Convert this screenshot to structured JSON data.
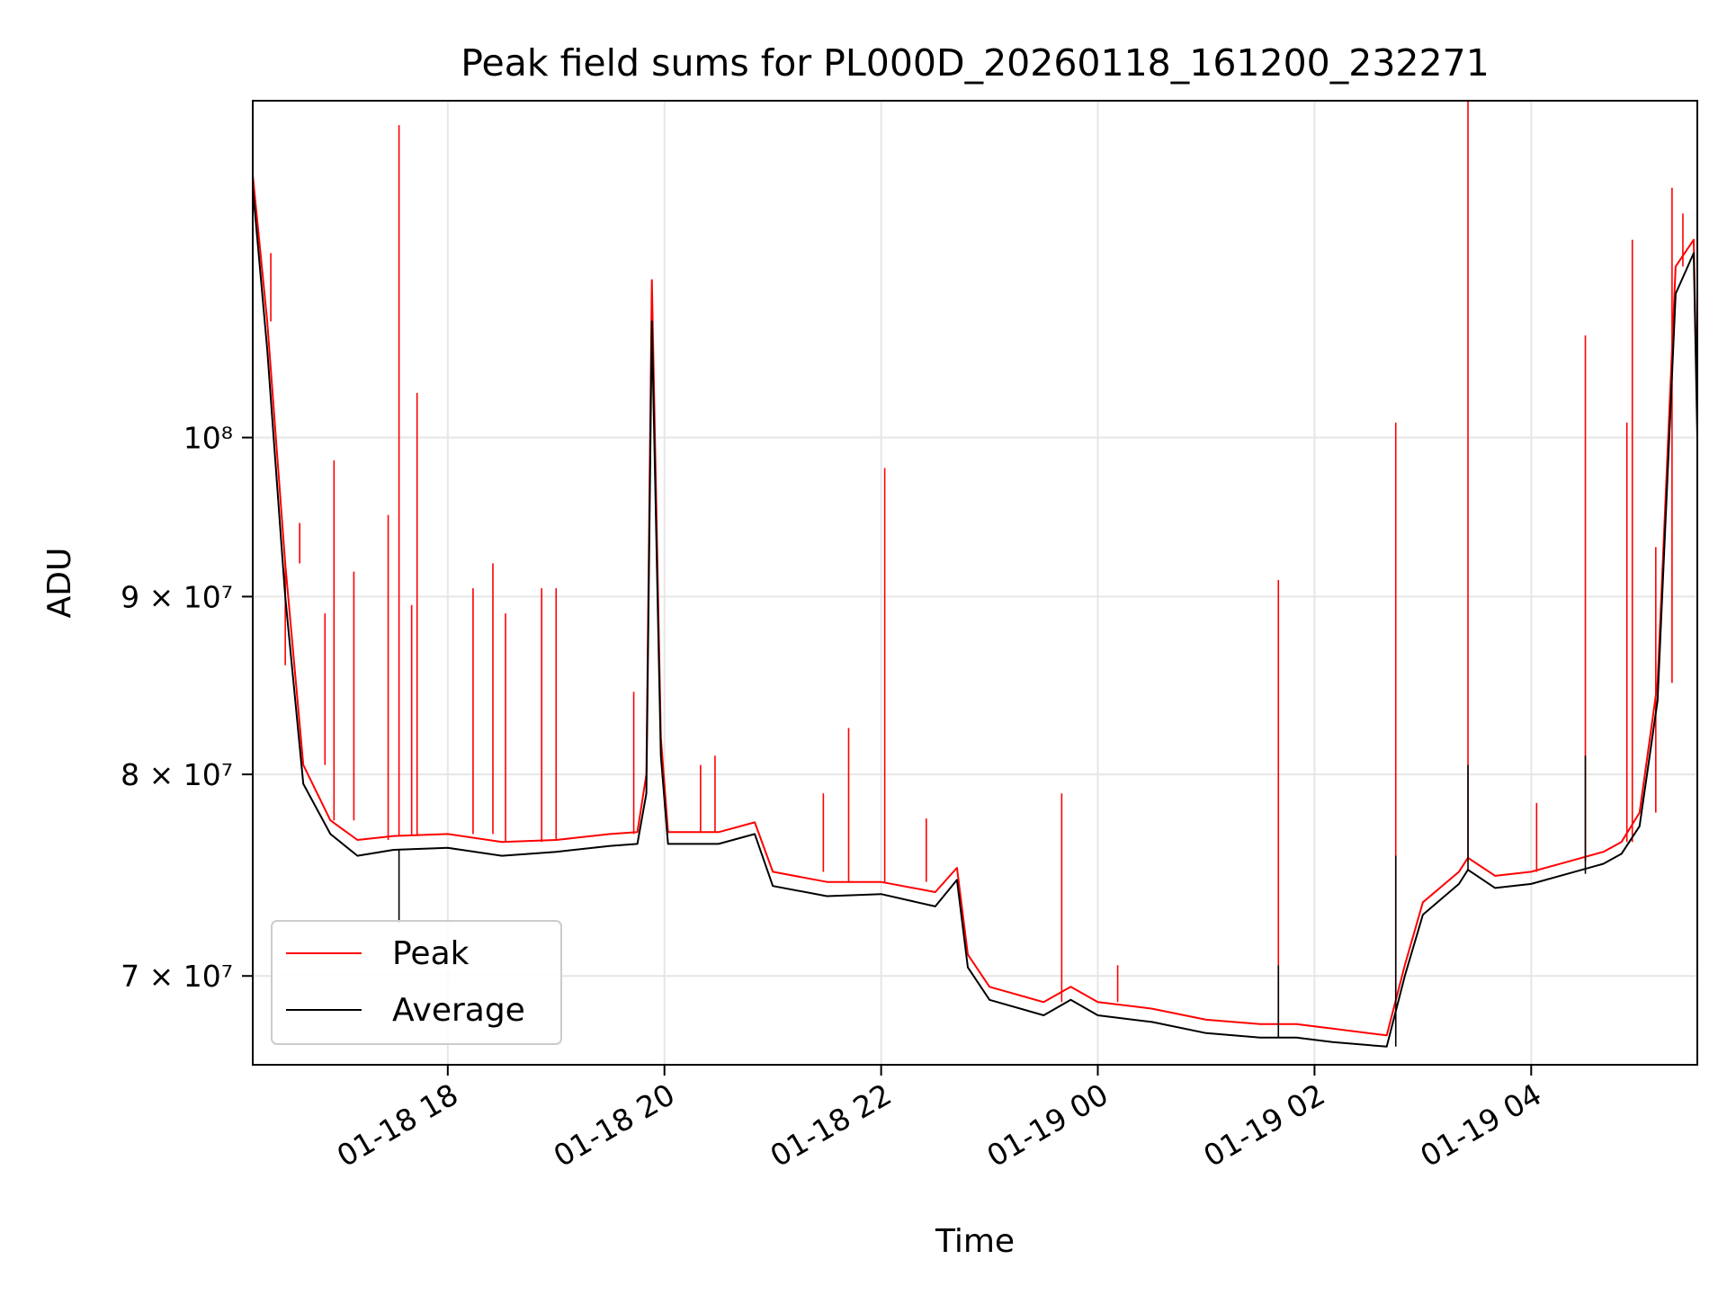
{
  "chart_data": {
    "type": "line",
    "title": "Peak field sums for PL000D_20260118_161200_232271",
    "xlabel": "Time",
    "ylabel": "ADU",
    "y_scale": "log",
    "grid": true,
    "legend_position": "lower-left",
    "xlim": [
      "2026-01-18 16:12",
      "2026-01-19 05:32"
    ],
    "ylim": [
      66000000,
      125000000
    ],
    "x_ticks": [
      {
        "t": "2026-01-18 18:00",
        "label": "01-18 18"
      },
      {
        "t": "2026-01-18 20:00",
        "label": "01-18 20"
      },
      {
        "t": "2026-01-18 22:00",
        "label": "01-18 22"
      },
      {
        "t": "2026-01-19 00:00",
        "label": "01-19 00"
      },
      {
        "t": "2026-01-19 02:00",
        "label": "01-19 02"
      },
      {
        "t": "2026-01-19 04:00",
        "label": "01-19 04"
      }
    ],
    "y_ticks": [
      {
        "v": 70000000,
        "label": "7 × 10⁷"
      },
      {
        "v": 80000000,
        "label": "8 × 10⁷"
      },
      {
        "v": 90000000,
        "label": "9 × 10⁷"
      },
      {
        "v": 100000000,
        "label": "10⁸"
      }
    ],
    "series": [
      {
        "name": "Peak",
        "color": "#ff0000",
        "x": [
          "2026-01-18 16:12",
          "2026-01-18 16:20",
          "2026-01-18 16:30",
          "2026-01-18 16:40",
          "2026-01-18 16:55",
          "2026-01-18 17:10",
          "2026-01-18 17:30",
          "2026-01-18 18:00",
          "2026-01-18 18:30",
          "2026-01-18 19:00",
          "2026-01-18 19:30",
          "2026-01-18 19:45",
          "2026-01-18 19:50",
          "2026-01-18 19:53",
          "2026-01-18 19:58",
          "2026-01-18 20:02",
          "2026-01-18 20:30",
          "2026-01-18 20:50",
          "2026-01-18 21:00",
          "2026-01-18 21:30",
          "2026-01-18 22:00",
          "2026-01-18 22:30",
          "2026-01-18 22:42",
          "2026-01-18 22:48",
          "2026-01-18 23:00",
          "2026-01-18 23:30",
          "2026-01-18 23:45",
          "2026-01-19 00:00",
          "2026-01-19 00:30",
          "2026-01-19 01:00",
          "2026-01-19 01:30",
          "2026-01-19 01:50",
          "2026-01-19 02:10",
          "2026-01-19 02:40",
          "2026-01-19 02:50",
          "2026-01-19 03:00",
          "2026-01-19 03:20",
          "2026-01-19 03:25",
          "2026-01-19 03:40",
          "2026-01-19 04:00",
          "2026-01-19 04:20",
          "2026-01-19 04:40",
          "2026-01-19 04:50",
          "2026-01-19 05:00",
          "2026-01-19 05:10",
          "2026-01-19 05:20",
          "2026-01-19 05:30",
          "2026-01-19 05:32"
        ],
        "values": [
          119000000,
          108000000,
          92000000,
          80500000,
          77600000,
          76600000,
          76800000,
          76900000,
          76500000,
          76600000,
          76900000,
          77000000,
          80000000,
          111000000,
          82000000,
          77000000,
          77000000,
          77500000,
          75000000,
          74500000,
          74500000,
          74000000,
          75200000,
          71000000,
          69500000,
          68800000,
          69500000,
          68800000,
          68500000,
          68000000,
          67800000,
          67800000,
          67600000,
          67300000,
          70500000,
          73500000,
          75000000,
          75700000,
          74800000,
          75000000,
          75500000,
          76000000,
          76500000,
          78000000,
          85000000,
          112000000,
          114000000,
          101000000
        ]
      },
      {
        "name": "Average",
        "color": "#000000",
        "x": [
          "2026-01-18 16:12",
          "2026-01-18 16:20",
          "2026-01-18 16:30",
          "2026-01-18 16:40",
          "2026-01-18 16:55",
          "2026-01-18 17:10",
          "2026-01-18 17:30",
          "2026-01-18 18:00",
          "2026-01-18 18:30",
          "2026-01-18 19:00",
          "2026-01-18 19:30",
          "2026-01-18 19:45",
          "2026-01-18 19:50",
          "2026-01-18 19:53",
          "2026-01-18 19:58",
          "2026-01-18 20:02",
          "2026-01-18 20:30",
          "2026-01-18 20:50",
          "2026-01-18 21:00",
          "2026-01-18 21:30",
          "2026-01-18 22:00",
          "2026-01-18 22:30",
          "2026-01-18 22:42",
          "2026-01-18 22:48",
          "2026-01-18 23:00",
          "2026-01-18 23:30",
          "2026-01-18 23:45",
          "2026-01-19 00:00",
          "2026-01-19 00:30",
          "2026-01-19 01:00",
          "2026-01-19 01:30",
          "2026-01-19 01:50",
          "2026-01-19 02:10",
          "2026-01-19 02:40",
          "2026-01-19 02:50",
          "2026-01-19 03:00",
          "2026-01-19 03:20",
          "2026-01-19 03:25",
          "2026-01-19 03:40",
          "2026-01-19 04:00",
          "2026-01-19 04:20",
          "2026-01-19 04:40",
          "2026-01-19 04:50",
          "2026-01-19 05:00",
          "2026-01-19 05:10",
          "2026-01-19 05:20",
          "2026-01-19 05:30",
          "2026-01-19 05:32"
        ],
        "values": [
          118000000,
          106000000,
          90000000,
          79500000,
          76900000,
          75800000,
          76100000,
          76200000,
          75800000,
          76000000,
          76300000,
          76400000,
          79000000,
          108000000,
          81000000,
          76400000,
          76400000,
          76900000,
          74300000,
          73800000,
          73900000,
          73300000,
          74600000,
          70400000,
          68900000,
          68200000,
          68900000,
          68200000,
          67900000,
          67400000,
          67200000,
          67200000,
          67000000,
          66800000,
          70000000,
          72900000,
          74400000,
          75100000,
          74200000,
          74400000,
          74900000,
          75400000,
          75900000,
          77300000,
          84000000,
          110000000,
          113000000,
          100000000
        ]
      }
    ],
    "spikes": {
      "Peak": [
        [
          "2026-01-18 16:22",
          113000000
        ],
        [
          "2026-01-18 16:30",
          86000000
        ],
        [
          "2026-01-18 16:38",
          94500000
        ],
        [
          "2026-01-18 16:52",
          89000000
        ],
        [
          "2026-01-18 16:57",
          98500000
        ],
        [
          "2026-01-18 17:08",
          91500000
        ],
        [
          "2026-01-18 17:27",
          95000000
        ],
        [
          "2026-01-18 17:33",
          123000000
        ],
        [
          "2026-01-18 17:40",
          89500000
        ],
        [
          "2026-01-18 17:43",
          103000000
        ],
        [
          "2026-01-18 18:14",
          90500000
        ],
        [
          "2026-01-18 18:25",
          92000000
        ],
        [
          "2026-01-18 18:32",
          89000000
        ],
        [
          "2026-01-18 18:52",
          90500000
        ],
        [
          "2026-01-18 19:00",
          90500000
        ],
        [
          "2026-01-18 19:43",
          84500000
        ],
        [
          "2026-01-18 20:20",
          80500000
        ],
        [
          "2026-01-18 20:28",
          81000000
        ],
        [
          "2026-01-18 21:28",
          79000000
        ],
        [
          "2026-01-18 21:42",
          82500000
        ],
        [
          "2026-01-18 22:02",
          98000000
        ],
        [
          "2026-01-18 22:25",
          77700000
        ],
        [
          "2026-01-18 23:40",
          79000000
        ],
        [
          "2026-01-19 00:11",
          70500000
        ],
        [
          "2026-01-19 01:40",
          91000000
        ],
        [
          "2026-01-19 02:45",
          101000000
        ],
        [
          "2026-01-19 03:25",
          125000000
        ],
        [
          "2026-01-19 04:03",
          78500000
        ],
        [
          "2026-01-19 04:30",
          107000000
        ],
        [
          "2026-01-19 04:53",
          101000000
        ],
        [
          "2026-01-19 04:56",
          114000000
        ],
        [
          "2026-01-19 05:09",
          93000000
        ],
        [
          "2026-01-19 05:18",
          118000000
        ],
        [
          "2026-01-19 05:24",
          116000000
        ]
      ],
      "Average": [
        [
          "2026-01-18 17:33",
          72500000
        ],
        [
          "2026-01-19 01:40",
          70500000
        ],
        [
          "2026-01-19 02:45",
          75800000
        ],
        [
          "2026-01-19 03:25",
          80500000
        ],
        [
          "2026-01-19 04:30",
          81000000
        ]
      ]
    }
  }
}
